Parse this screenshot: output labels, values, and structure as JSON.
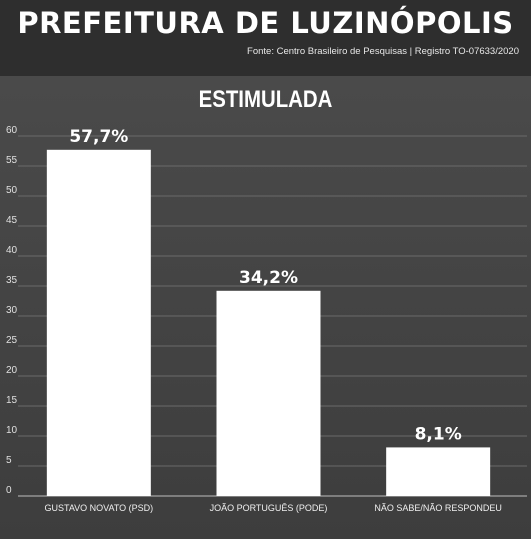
{
  "header": {
    "title": "PREFEITURA DE LUZINÓPOLIS",
    "source": "Fonte: Centro Brasileiro de Pesquisas | Registro TO-07633/2020"
  },
  "colors": {
    "bar": "#ffffff",
    "background": "#3a3a3a",
    "grid": "#6a6a6a"
  },
  "chart_data": {
    "type": "bar",
    "title": "ESTIMULADA",
    "categories": [
      "GUSTAVO NOVATO (PSD)",
      "JOÃO PORTUGUÊS (PODE)",
      "NÃO SABE/NÃO RESPONDEU"
    ],
    "values": [
      57.7,
      34.2,
      8.1
    ],
    "data_labels": [
      "57,7%",
      "34,2%",
      "8,1%"
    ],
    "ylim": [
      0,
      60
    ],
    "yticks": [
      0,
      5,
      10,
      15,
      20,
      25,
      30,
      35,
      40,
      45,
      50,
      55,
      60
    ],
    "grid": true,
    "legend": "none"
  }
}
